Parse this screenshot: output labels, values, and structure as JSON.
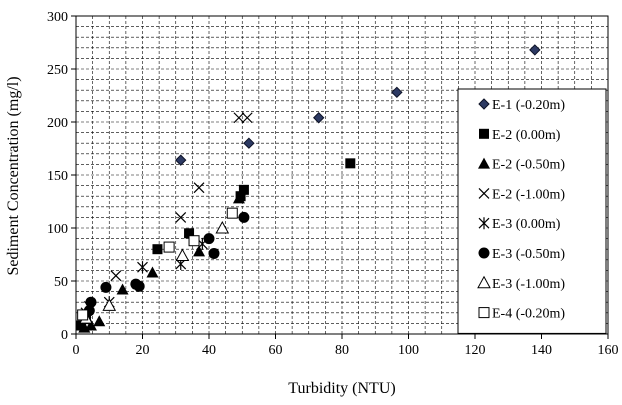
{
  "chart_data": {
    "type": "scatter",
    "title": "",
    "xlabel": "Turbidity (NTU)",
    "ylabel": "Sediment Concentration (mg/l)",
    "xlim": [
      0,
      160
    ],
    "ylim": [
      0,
      300
    ],
    "xticks": [
      0,
      20,
      40,
      60,
      80,
      100,
      120,
      140,
      160
    ],
    "yticks": [
      0,
      50,
      100,
      150,
      200,
      250,
      300
    ],
    "grid": true,
    "legend_position": "right",
    "series": [
      {
        "name": "E-1 (-0.20m)",
        "marker": "diamond-filled",
        "color": "#1f2a44",
        "points": [
          [
            31.5,
            164
          ],
          [
            52,
            180
          ],
          [
            73,
            204
          ],
          [
            96.5,
            228
          ],
          [
            138,
            268
          ]
        ]
      },
      {
        "name": "E-2 (0.00m)",
        "marker": "square-filled",
        "color": "#000000",
        "points": [
          [
            1.5,
            8
          ],
          [
            3,
            14
          ],
          [
            24.5,
            80
          ],
          [
            34,
            95
          ],
          [
            49.5,
            130
          ],
          [
            50.5,
            136
          ],
          [
            82.5,
            161
          ]
        ]
      },
      {
        "name": "E-2 (-0.50m)",
        "marker": "triangle-filled",
        "color": "#000000",
        "points": [
          [
            2.5,
            6
          ],
          [
            4.5,
            8
          ],
          [
            7,
            12
          ],
          [
            14,
            42
          ],
          [
            23,
            58
          ],
          [
            37,
            78
          ],
          [
            49,
            128
          ]
        ]
      },
      {
        "name": "E-2 (-1.00m)",
        "marker": "x",
        "color": "#000000",
        "points": [
          [
            4,
            26
          ],
          [
            12,
            55
          ],
          [
            31.5,
            110
          ],
          [
            37,
            138
          ],
          [
            49,
            204
          ],
          [
            51.5,
            204
          ]
        ]
      },
      {
        "name": "E-3 (0.00m)",
        "marker": "asterisk",
        "color": "#000000",
        "points": [
          [
            3,
            20
          ],
          [
            10,
            30
          ],
          [
            20,
            63
          ],
          [
            31.5,
            66
          ],
          [
            38,
            85
          ]
        ]
      },
      {
        "name": "E-3 (-0.50m)",
        "marker": "circle-filled",
        "color": "#000000",
        "points": [
          [
            4,
            22
          ],
          [
            4.5,
            30
          ],
          [
            9,
            44
          ],
          [
            18,
            47
          ],
          [
            19,
            45
          ],
          [
            40,
            90
          ],
          [
            41.5,
            76
          ],
          [
            50.5,
            110
          ]
        ]
      },
      {
        "name": "E-3 (-1.00m)",
        "marker": "triangle-open",
        "color": "#000000",
        "points": [
          [
            3,
            15
          ],
          [
            10,
            27
          ],
          [
            32,
            74
          ],
          [
            44,
            100
          ]
        ]
      },
      {
        "name": "E-4 (-0.20m)",
        "marker": "square-open",
        "color": "#000000",
        "points": [
          [
            2,
            18
          ],
          [
            28,
            82
          ],
          [
            35.5,
            88
          ],
          [
            47,
            114
          ]
        ]
      }
    ]
  }
}
